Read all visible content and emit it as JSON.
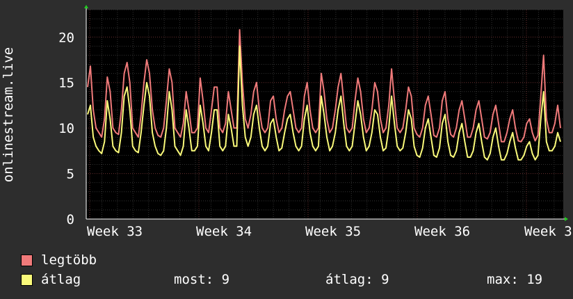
{
  "chart_data": {
    "type": "line",
    "ylabel": "onlinestream.live",
    "ylim": [
      0,
      23
    ],
    "yticks": [
      0,
      5,
      10,
      15,
      20
    ],
    "xticks": [
      "Week 33",
      "Week 34",
      "Week 35",
      "Week 36",
      "Week 3"
    ],
    "grid": true,
    "colors": {
      "background": "#2d2d2d",
      "plot": "#000000",
      "grid": "#4a4a4a"
    },
    "series": [
      {
        "name": "legtöbb",
        "color": "#f07a7a",
        "values": [
          14.5,
          16.8,
          12,
          10,
          9.5,
          9,
          11,
          15.6,
          14,
          10,
          9.5,
          9.3,
          12,
          16,
          17.2,
          15,
          10,
          9.5,
          9,
          11.5,
          15,
          17.5,
          16,
          12,
          10,
          9.2,
          9,
          10,
          13,
          16.5,
          15,
          10,
          9.5,
          9,
          10.5,
          14,
          12,
          9.5,
          9.5,
          10,
          15.5,
          13,
          10,
          9.5,
          12,
          14.5,
          14.5,
          10,
          9.5,
          10.5,
          14,
          12,
          10,
          10,
          20.8,
          15,
          11,
          10,
          11.5,
          14,
          15,
          12,
          10,
          9.5,
          10,
          13,
          13.5,
          11,
          9.5,
          10,
          12,
          13.5,
          14,
          12,
          10,
          9.5,
          10,
          13.5,
          15,
          12,
          10,
          9.5,
          10,
          16,
          14,
          11,
          9.5,
          10,
          12,
          14.5,
          16,
          13,
          10,
          9.5,
          10,
          13,
          15.5,
          14,
          11,
          9.5,
          10,
          12,
          15,
          14,
          11,
          9.5,
          10,
          12.5,
          16.5,
          13,
          10,
          9.5,
          10,
          12,
          14.5,
          13.5,
          10,
          9.3,
          9,
          10,
          12.5,
          13.5,
          11.5,
          9.2,
          9,
          10,
          13,
          14,
          11,
          9.3,
          9,
          10,
          12,
          13,
          11,
          9,
          9,
          10,
          12,
          13,
          11,
          9,
          8.8,
          9.5,
          11.5,
          12.5,
          10.5,
          8.5,
          8.5,
          9.5,
          11,
          12,
          10,
          8.6,
          8.5,
          9,
          10.5,
          11,
          9.5,
          8.6,
          9.2,
          13.5,
          18,
          11,
          9.5,
          9.5,
          10.5,
          12.5,
          10
        ]
      },
      {
        "name": "átlag",
        "color": "#fafa7a",
        "values": [
          11.5,
          12.5,
          9,
          8,
          7.5,
          7.2,
          8.5,
          13,
          11,
          8,
          7.5,
          7.3,
          9.5,
          13.5,
          14.5,
          12,
          8,
          7.5,
          7.3,
          9.5,
          12.5,
          15,
          13.5,
          9.5,
          8,
          7.2,
          7,
          7.5,
          10,
          14,
          12,
          8,
          7.5,
          7,
          8,
          12,
          10,
          7.5,
          7.5,
          8,
          12.5,
          10.5,
          8,
          7.5,
          9.5,
          12,
          12,
          8,
          7.5,
          8,
          11.5,
          10,
          8,
          8,
          19,
          12.5,
          9,
          8,
          9,
          11.5,
          12.5,
          10,
          8,
          7.5,
          8,
          10.5,
          11,
          9,
          7.5,
          7.8,
          9.5,
          11,
          11.5,
          9.5,
          8,
          7.5,
          8,
          11,
          12.5,
          9.5,
          8,
          7.5,
          8,
          13.5,
          11.5,
          9,
          7.5,
          8,
          9.5,
          12,
          13.5,
          10.5,
          8,
          7.5,
          8,
          10.5,
          13,
          11.5,
          9,
          7.5,
          8,
          9.5,
          12,
          11.5,
          9,
          7.5,
          7.8,
          10,
          13.5,
          10.5,
          8,
          7.5,
          7.8,
          9.5,
          12,
          11,
          8,
          7,
          6.8,
          7.8,
          10,
          11,
          9,
          7,
          6.8,
          7.8,
          10.5,
          11.5,
          8.5,
          7,
          6.8,
          7.5,
          9.5,
          10.5,
          8.5,
          6.8,
          6.8,
          7.5,
          9.5,
          10.5,
          8.5,
          6.8,
          6.5,
          7.2,
          9,
          10,
          8,
          6.5,
          6.5,
          7.2,
          8.5,
          9.5,
          7.8,
          6.5,
          6.5,
          7,
          8,
          8.5,
          7.2,
          6.5,
          7,
          11,
          14,
          8.5,
          7.5,
          7.5,
          8,
          9.5,
          8.5
        ]
      }
    ]
  },
  "legend": {
    "items": [
      {
        "label": "legtöbb",
        "color": "#f07a7a"
      },
      {
        "label": "átlag",
        "color": "#fafa7a"
      }
    ]
  },
  "stats": {
    "now": "most: 9",
    "avg": "átlag: 9",
    "max": "max: 19"
  }
}
